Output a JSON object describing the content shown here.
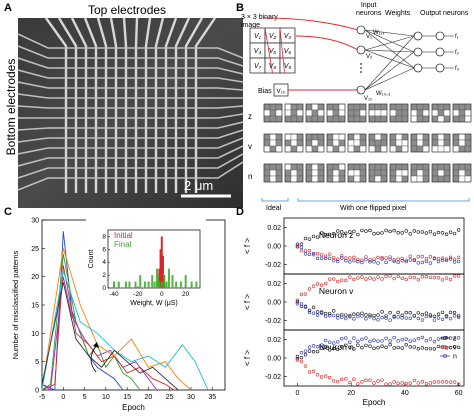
{
  "panels": {
    "A": {
      "letter": "A",
      "top_label": "Top electrodes",
      "side_label": "Bottom electrodes",
      "scale_label": "2 μm"
    },
    "B": {
      "letter": "B",
      "grid_caption": [
        "3 × 3 binary",
        "image"
      ],
      "inputs": [
        "V₁",
        "V₂",
        "V₃",
        "V₄",
        "V₅",
        "V₆",
        "V₇",
        "V₈",
        "V₉"
      ],
      "bias_label": "Bias",
      "bias_var": "V₁₀",
      "header_input": [
        "Input",
        "neurons"
      ],
      "header_weights": "Weights",
      "header_output": "Output neurons",
      "w11": "W₁,₁",
      "w103": "W₁₀,₃",
      "n1": "V₁",
      "n2": "V₂",
      "n10": "V₁₀",
      "f_labels": [
        "f₁",
        "f₂",
        "f₃"
      ],
      "row_labels": [
        "z",
        "v",
        "n"
      ],
      "ideal_label": "Ideal",
      "flipped_label": "With one flipped pixel",
      "patterns": {
        "z": [
          1,
          1,
          1,
          0,
          1,
          0,
          1,
          1,
          1
        ],
        "v": [
          1,
          0,
          1,
          1,
          0,
          1,
          0,
          1,
          0
        ],
        "n": [
          1,
          1,
          1,
          1,
          0,
          1,
          1,
          0,
          1
        ]
      }
    },
    "C": {
      "letter": "C",
      "ylabel": "Number of misclassified patterns",
      "xlabel": "Epoch",
      "inset_ylabel": "Count",
      "inset_xlabel": "Weight, W (μS)",
      "legend_initial": "Initial",
      "legend_final": "Final"
    },
    "D": {
      "letter": "D",
      "xlabel": "Epoch",
      "ylabel": "< f >",
      "sub_titles": [
        "Neuron z",
        "Neuron v",
        "Neuron n"
      ],
      "legend": [
        "z",
        "v",
        "n"
      ]
    }
  },
  "colors": {
    "red": "#d62728",
    "green": "#3fae2a",
    "blue": "#2d3aa8",
    "black": "#111111",
    "pixel_on": "#8c8c8c"
  },
  "chart_data": [
    {
      "type": "line",
      "panel": "C",
      "xlabel": "Epoch",
      "ylabel": "Number of misclassified patterns",
      "xlim": [
        -5,
        38
      ],
      "ylim": [
        0,
        30
      ],
      "x_ticks": [
        -5,
        0,
        5,
        10,
        15,
        20,
        25,
        30,
        35
      ],
      "y_ticks": [
        0,
        5,
        10,
        15,
        20,
        25,
        30
      ],
      "series": [
        {
          "color": "#1f4bd6",
          "x": [
            -5,
            -2,
            0,
            2,
            4,
            6,
            8,
            10,
            12,
            14
          ],
          "y": [
            1,
            0,
            28,
            14,
            10,
            6,
            4,
            3,
            2,
            0
          ]
        },
        {
          "color": "#2ca02c",
          "x": [
            -5,
            -3,
            0,
            3,
            6,
            8,
            10,
            12,
            14,
            16,
            18
          ],
          "y": [
            0,
            1,
            24,
            12,
            6,
            8,
            4,
            6,
            3,
            2,
            0
          ]
        },
        {
          "color": "#9b30c8",
          "x": [
            -5,
            -3,
            0,
            2,
            5,
            8,
            11,
            14,
            17,
            20,
            22
          ],
          "y": [
            1,
            0,
            20,
            13,
            9,
            6,
            7,
            4,
            5,
            2,
            0
          ]
        },
        {
          "color": "#d62728",
          "x": [
            -5,
            -2,
            0,
            3,
            6,
            9,
            12,
            15,
            18,
            21,
            24,
            26
          ],
          "y": [
            0,
            1,
            22,
            10,
            8,
            5,
            6,
            3,
            4,
            2,
            1,
            0
          ]
        },
        {
          "color": "#ff7f0e",
          "x": [
            -5,
            0,
            4,
            8,
            12,
            16,
            20,
            24,
            27,
            30
          ],
          "y": [
            0,
            25,
            15,
            8,
            6,
            9,
            4,
            5,
            2,
            0
          ]
        },
        {
          "color": "#17becf",
          "x": [
            -5,
            0,
            4,
            8,
            12,
            16,
            20,
            24,
            28,
            31,
            34
          ],
          "y": [
            0,
            21,
            12,
            10,
            7,
            5,
            6,
            4,
            8,
            5,
            0
          ]
        },
        {
          "color": "#333333",
          "x": [
            -5,
            0,
            3,
            6,
            9,
            12,
            15,
            18,
            21,
            24,
            27
          ],
          "y": [
            1,
            19,
            9,
            6,
            4,
            7,
            5,
            3,
            4,
            2,
            0
          ]
        }
      ]
    },
    {
      "type": "bar",
      "panel": "C-inset",
      "xlabel": "Weight, W (μS)",
      "ylabel": "Count",
      "xlim": [
        -45,
        32
      ],
      "ylim": [
        0,
        9
      ],
      "x_ticks": [
        -40,
        -20,
        0,
        20
      ],
      "y_ticks": [
        0,
        2,
        4,
        6,
        8
      ],
      "series": [
        {
          "name": "Initial",
          "x": [
            -2,
            -1,
            0,
            1,
            2
          ],
          "values": [
            3,
            6,
            8,
            5,
            2
          ]
        },
        {
          "name": "Final",
          "x": [
            -40,
            -36,
            -30,
            -27,
            -22,
            -18,
            -14,
            -11,
            -8,
            -6,
            -4,
            -3,
            -2,
            0,
            2,
            4,
            6,
            9,
            12,
            16,
            20,
            25,
            29
          ],
          "values": [
            1,
            1,
            1,
            1,
            1,
            2,
            1,
            1,
            2,
            1,
            3,
            2,
            1,
            1,
            2,
            1,
            3,
            2,
            1,
            1,
            2,
            1,
            1
          ]
        }
      ]
    },
    {
      "type": "scatter",
      "panel": "D",
      "xlabel": "Epoch",
      "ylabel": "< f >",
      "xlim": [
        -5,
        62
      ],
      "x_ticks": [
        0,
        20,
        40,
        60
      ],
      "subplots": [
        {
          "title": "Neuron z",
          "ylim": [
            -0.03,
            0.03
          ],
          "y_ticks": [
            -0.02,
            0,
            0.02
          ],
          "series": [
            {
              "name": "z",
              "color": "#111111",
              "start": 0,
              "end": 0.015
            },
            {
              "name": "v",
              "color": "#d62728",
              "start": 0,
              "end": -0.013
            },
            {
              "name": "n",
              "color": "#2d3aa8",
              "start": 0,
              "end": -0.016
            }
          ]
        },
        {
          "title": "Neuron v",
          "ylim": [
            -0.03,
            0.03
          ],
          "y_ticks": [
            -0.02,
            0,
            0.02
          ],
          "series": [
            {
              "name": "z",
              "color": "#111111",
              "start": 0,
              "end": -0.013
            },
            {
              "name": "v",
              "color": "#d62728",
              "start": 0,
              "end": 0.026
            },
            {
              "name": "n",
              "color": "#2d3aa8",
              "start": 0,
              "end": -0.017
            }
          ]
        },
        {
          "title": "Neuron n",
          "ylim": [
            -0.03,
            0.03
          ],
          "y_ticks": [
            -0.02,
            0,
            0.02
          ],
          "series": [
            {
              "name": "z",
              "color": "#111111",
              "start": 0,
              "end": 0.012
            },
            {
              "name": "v",
              "color": "#d62728",
              "start": 0,
              "end": -0.026
            },
            {
              "name": "n",
              "color": "#2d3aa8",
              "start": 0,
              "end": 0.02
            }
          ]
        }
      ]
    }
  ]
}
